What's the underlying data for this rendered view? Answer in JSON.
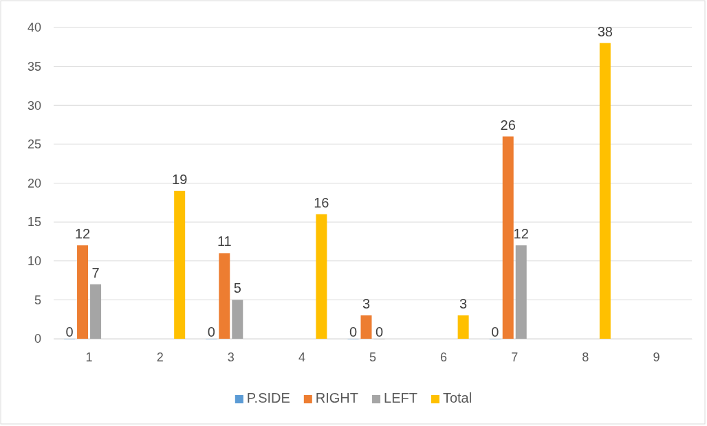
{
  "chart_data": {
    "type": "bar",
    "categories": [
      "1",
      "2",
      "3",
      "4",
      "5",
      "6",
      "7",
      "8",
      "9"
    ],
    "series": [
      {
        "name": "P.SIDE",
        "color": "#5b9bd5",
        "values": [
          0,
          null,
          0,
          null,
          0,
          null,
          0,
          null,
          null
        ]
      },
      {
        "name": "RIGHT",
        "color": "#ed7d31",
        "values": [
          12,
          null,
          11,
          null,
          3,
          null,
          26,
          null,
          null
        ]
      },
      {
        "name": "LEFT",
        "color": "#a5a5a5",
        "values": [
          7,
          null,
          5,
          null,
          0,
          null,
          12,
          null,
          null
        ]
      },
      {
        "name": "Total",
        "color": "#ffc000",
        "values": [
          null,
          19,
          null,
          16,
          null,
          3,
          null,
          38,
          null
        ]
      }
    ],
    "ylim": [
      0,
      40
    ],
    "yticks": [
      0,
      5,
      10,
      15,
      20,
      25,
      30,
      35,
      40
    ],
    "grid": "y",
    "legend": "bottom",
    "data_labels": true
  }
}
